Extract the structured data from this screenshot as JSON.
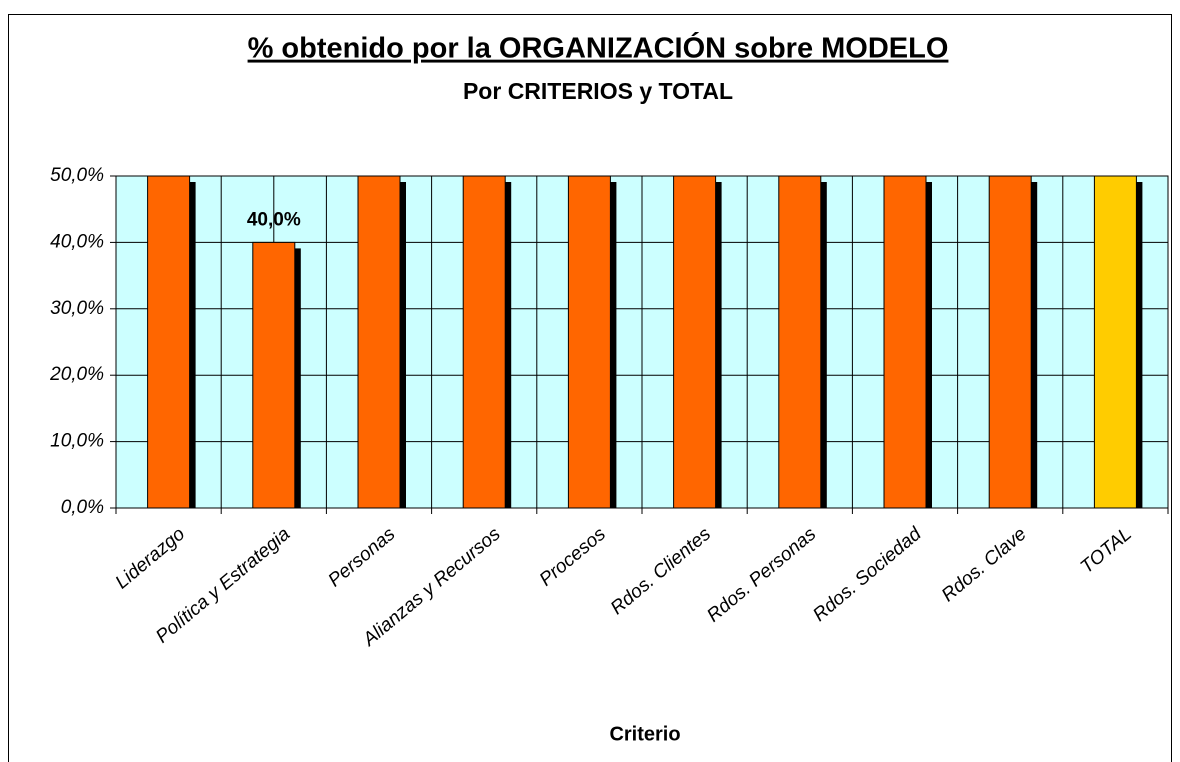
{
  "chart_data": {
    "type": "bar",
    "title": "% obtenido por la ORGANIZACIÓN sobre MODELO",
    "subtitle": "Por CRITERIOS y TOTAL",
    "x_label": "Criterio",
    "categories": [
      "Liderazgo",
      "Política y Estrategia",
      "Personas",
      "Alianzas y Recursos",
      "Procesos",
      "Rdos. Clientes",
      "Rdos. Personas",
      "Rdos. Sociedad",
      "Rdos. Clave",
      "TOTAL"
    ],
    "values": [
      50,
      40,
      50,
      50,
      50,
      50,
      50,
      50,
      50,
      50
    ],
    "value_labels": [
      null,
      "40,0%",
      null,
      null,
      null,
      null,
      null,
      null,
      null,
      null
    ],
    "colors": [
      "#ff6600",
      "#ff6600",
      "#ff6600",
      "#ff6600",
      "#ff6600",
      "#ff6600",
      "#ff6600",
      "#ff6600",
      "#ff6600",
      "#ffcc00"
    ],
    "ylim": [
      0,
      50
    ],
    "yticks": [
      {
        "value": 0,
        "label": "0,0%"
      },
      {
        "value": 10,
        "label": "10,0%"
      },
      {
        "value": 20,
        "label": "20,0%"
      },
      {
        "value": 30,
        "label": "30,0%"
      },
      {
        "value": 40,
        "label": "40,0%"
      },
      {
        "value": 50,
        "label": "50,0%"
      }
    ],
    "grid": true,
    "plot_background": "#ccffff"
  }
}
